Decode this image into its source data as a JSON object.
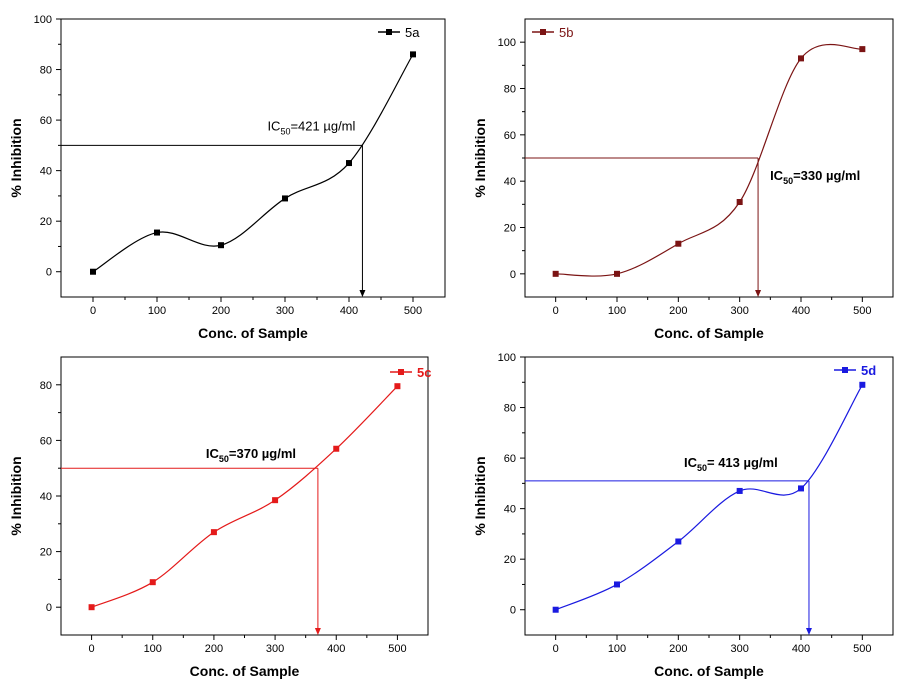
{
  "chart_data": [
    {
      "type": "line",
      "panel": "top-left",
      "xlabel": "Conc. of Sample",
      "ylabel": "% Inhibition",
      "xlim": [
        -50,
        550
      ],
      "ylim": [
        -10,
        100
      ],
      "xticks": [
        0,
        100,
        200,
        300,
        400,
        500
      ],
      "yticks": [
        0,
        20,
        40,
        60,
        80,
        100
      ],
      "color": "#000000",
      "legend": "top-right",
      "series": [
        {
          "name": "5a",
          "x": [
            0,
            100,
            200,
            300,
            400,
            500
          ],
          "y": [
            0,
            15.5,
            10.5,
            29,
            43,
            86
          ]
        }
      ],
      "ic50": {
        "label_main": "IC",
        "label_sub": "50",
        "label_rest": "=421 µg/ml",
        "x": 421,
        "y": 50,
        "bold": false
      }
    },
    {
      "type": "line",
      "panel": "top-right",
      "xlabel": "Conc. of Sample",
      "ylabel": "% Inhibition",
      "xlim": [
        -50,
        550
      ],
      "ylim": [
        -10,
        110
      ],
      "xticks": [
        0,
        100,
        200,
        300,
        400,
        500
      ],
      "yticks": [
        0,
        20,
        40,
        60,
        80,
        100
      ],
      "color": "#7b1414",
      "legend": "top-left",
      "series": [
        {
          "name": "5b",
          "x": [
            0,
            100,
            200,
            300,
            400,
            500
          ],
          "y": [
            0,
            0,
            13,
            31,
            93,
            97
          ]
        }
      ],
      "ic50": {
        "label_main": "IC",
        "label_sub": "50",
        "label_rest": "=330 µg/ml",
        "x": 330,
        "y": 50,
        "bold": true
      }
    },
    {
      "type": "line",
      "panel": "bottom-left",
      "xlabel": "Conc. of Sample",
      "ylabel": "% Inhibition",
      "xlim": [
        -50,
        550
      ],
      "ylim": [
        -10,
        90
      ],
      "xticks": [
        0,
        100,
        200,
        300,
        400,
        500
      ],
      "yticks": [
        0,
        20,
        40,
        60,
        80
      ],
      "color": "#e41a1a",
      "legend": "top-right",
      "series": [
        {
          "name": "5c",
          "x": [
            0,
            100,
            200,
            300,
            400,
            500
          ],
          "y": [
            0,
            9,
            27,
            38.5,
            57,
            79.5
          ]
        }
      ],
      "ic50": {
        "label_main": "IC",
        "label_sub": "50",
        "label_rest": "=370 µg/ml",
        "x": 370,
        "y": 50,
        "bold": true
      }
    },
    {
      "type": "line",
      "panel": "bottom-right",
      "xlabel": "Conc. of Sample",
      "ylabel": "% Inhibition",
      "xlim": [
        -50,
        550
      ],
      "ylim": [
        -10,
        100
      ],
      "xticks": [
        0,
        100,
        200,
        300,
        400,
        500
      ],
      "yticks": [
        0,
        20,
        40,
        60,
        80,
        100
      ],
      "color": "#1a1ae0",
      "legend": "top-right",
      "series": [
        {
          "name": "5d",
          "x": [
            0,
            100,
            200,
            300,
            400,
            500
          ],
          "y": [
            0,
            10,
            27,
            47,
            48,
            89
          ]
        }
      ],
      "ic50": {
        "label_main": "IC",
        "label_sub": "50",
        "label_rest": "= 413 µg/ml",
        "x": 413,
        "y": 51,
        "bold": true
      }
    }
  ]
}
